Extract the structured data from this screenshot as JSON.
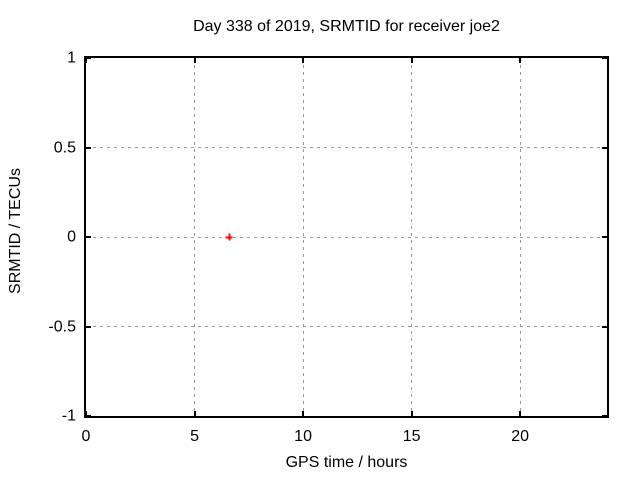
{
  "chart_data": {
    "type": "scatter",
    "title": "Day 338 of 2019, SRMTID for receiver joe2",
    "xlabel": "GPS time / hours",
    "ylabel": "SRMTID / TECUs",
    "xlim": [
      0,
      24
    ],
    "ylim": [
      -1,
      1
    ],
    "xticks": [
      0,
      5,
      10,
      15,
      20
    ],
    "yticks": [
      -1,
      -0.5,
      0,
      0.5,
      1
    ],
    "grid": true,
    "tick_style": "inside-mirrored",
    "legend_position": "none",
    "series": [
      {
        "name": "SRMTID",
        "marker": "plus",
        "color": "#ff0000",
        "points": [
          {
            "x": 6.6,
            "y": 0.0
          }
        ]
      }
    ],
    "colors": {
      "background": "#ffffff",
      "border": "#000000",
      "grid": "#999999",
      "text": "#000000"
    }
  }
}
